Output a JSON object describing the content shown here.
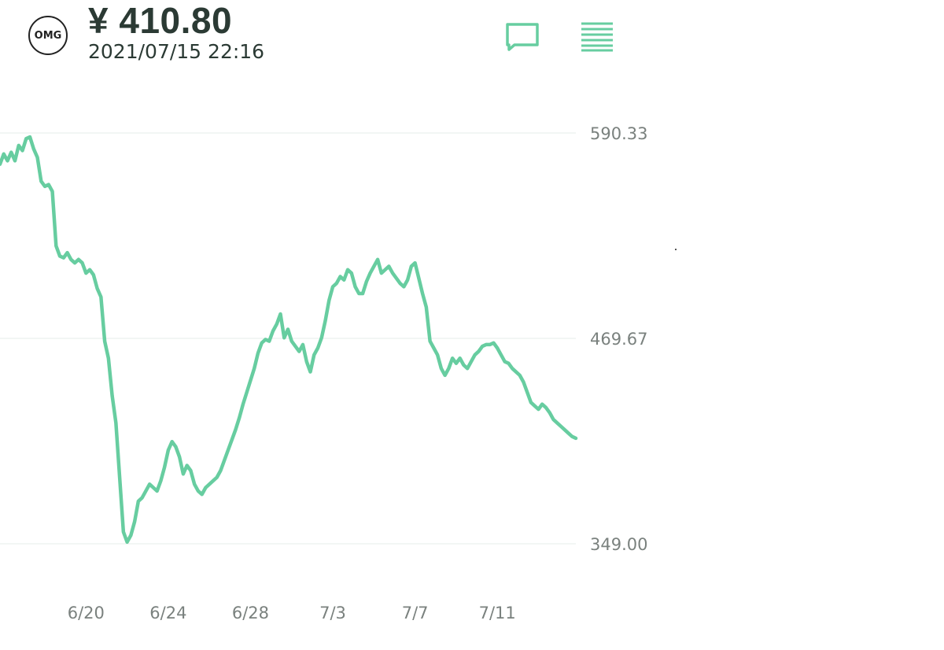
{
  "header": {
    "coin_symbol": "OMG",
    "price": "¥ 410.80",
    "timestamp": "2021/07/15 22:16",
    "chat_icon": "chat-bubble-icon",
    "menu_icon": "menu-lines-icon"
  },
  "colors": {
    "accent": "#67cda0",
    "gridline": "#e6ecea",
    "text_dark": "#2b3a34",
    "text_axis": "#7a817e"
  },
  "chart_data": {
    "type": "line",
    "title": "",
    "xlabel": "",
    "ylabel": "",
    "y_ticks": [
      "590.33",
      "469.67",
      "349.00"
    ],
    "ylim": [
      349.0,
      590.33
    ],
    "x_ticks": [
      "6/20",
      "6/24",
      "6/28",
      "7/3",
      "7/7",
      "7/11"
    ],
    "x_tick_index": [
      23,
      45,
      67,
      89,
      111,
      133
    ],
    "y_axis_position": "right",
    "grid": true,
    "legend": "none",
    "series": [
      {
        "color": "#67cda0",
        "values": [
          572,
          578,
          574,
          579,
          574,
          583,
          580,
          587,
          588,
          581,
          576,
          562,
          559,
          560,
          556,
          524,
          518,
          517,
          520,
          516,
          514,
          516,
          514,
          508,
          510,
          507,
          499,
          494,
          468,
          458,
          436,
          420,
          388,
          356,
          350,
          354,
          362,
          374,
          376,
          380,
          384,
          382,
          380,
          386,
          394,
          404,
          409,
          406,
          400,
          390,
          395,
          392,
          384,
          380,
          378,
          382,
          384,
          386,
          388,
          392,
          398,
          404,
          410,
          416,
          423,
          431,
          438,
          445,
          452,
          461,
          467,
          469,
          468,
          474,
          478,
          484,
          470,
          475,
          468,
          465,
          462,
          466,
          456,
          450,
          460,
          464,
          470,
          480,
          492,
          500,
          502,
          506,
          504,
          510,
          508,
          500,
          496,
          496,
          503,
          508,
          512,
          516,
          508,
          510,
          512,
          508,
          505,
          502,
          500,
          504,
          512,
          514,
          505,
          496,
          488,
          468,
          464,
          460,
          452,
          448,
          452,
          458,
          455,
          458,
          454,
          452,
          456,
          460,
          462,
          465,
          466,
          466,
          467,
          464,
          460,
          456,
          455,
          452,
          450,
          448,
          444,
          438,
          432,
          430,
          428,
          431,
          429,
          426,
          422,
          420,
          418,
          416,
          414,
          412,
          411
        ]
      }
    ]
  }
}
